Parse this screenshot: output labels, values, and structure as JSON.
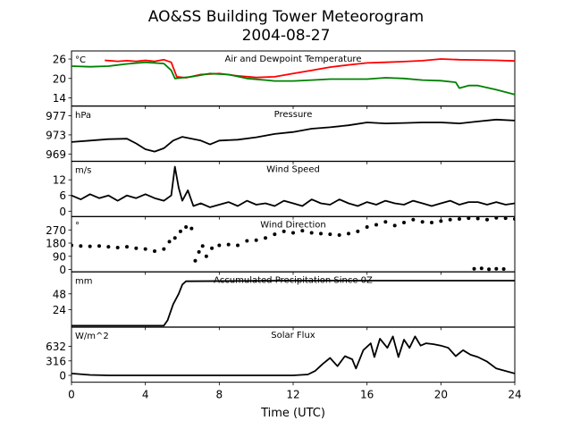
{
  "title": "AO&SS Building Tower Meteorogram",
  "subtitle": "2004-08-27",
  "xlabel": "Time (UTC)",
  "xticks": [
    "0",
    "4",
    "8",
    "12",
    "16",
    "20",
    "24"
  ],
  "chart_data": [
    {
      "type": "line",
      "title": "Air and Dewpoint Temperature",
      "unit": "°C",
      "ylim": [
        11.5,
        28.5
      ],
      "yticks": [
        14,
        20,
        26
      ],
      "x_unit": "hours UTC",
      "series": [
        {
          "color": "#ff0000",
          "points": [
            [
              1.8,
              25.6
            ],
            [
              2.5,
              25.3
            ],
            [
              3,
              25.5
            ],
            [
              3.5,
              25.3
            ],
            [
              4,
              25.6
            ],
            [
              4.5,
              25.3
            ],
            [
              5,
              25.8
            ],
            [
              5.4,
              25.0
            ],
            [
              5.7,
              20.5
            ],
            [
              6.2,
              20.2
            ],
            [
              7,
              21.2
            ],
            [
              8,
              21.5
            ],
            [
              9,
              20.8
            ],
            [
              10,
              20.3
            ],
            [
              11,
              20.5
            ],
            [
              12,
              21.5
            ],
            [
              13,
              22.5
            ],
            [
              14,
              23.5
            ],
            [
              15,
              24.2
            ],
            [
              16,
              24.8
            ],
            [
              17,
              25.0
            ],
            [
              18,
              25.2
            ],
            [
              19,
              25.5
            ],
            [
              20,
              26.0
            ],
            [
              21,
              25.8
            ],
            [
              22,
              25.7
            ],
            [
              23,
              25.6
            ],
            [
              24,
              25.4
            ]
          ]
        },
        {
          "color": "#008000",
          "points": [
            [
              0,
              23.8
            ],
            [
              1,
              23.6
            ],
            [
              2,
              23.8
            ],
            [
              3,
              24.5
            ],
            [
              4,
              25.0
            ],
            [
              5,
              24.6
            ],
            [
              5.4,
              22.5
            ],
            [
              5.6,
              20.0
            ],
            [
              6.5,
              20.5
            ],
            [
              7.5,
              21.5
            ],
            [
              8.5,
              21.2
            ],
            [
              9.5,
              20.0
            ],
            [
              10.5,
              19.5
            ],
            [
              11,
              19.2
            ],
            [
              12,
              19.2
            ],
            [
              13,
              19.5
            ],
            [
              14,
              19.8
            ],
            [
              15,
              19.8
            ],
            [
              16,
              19.8
            ],
            [
              17,
              20.2
            ],
            [
              18,
              20.0
            ],
            [
              19,
              19.5
            ],
            [
              20,
              19.3
            ],
            [
              20.8,
              18.8
            ],
            [
              21,
              17.0
            ],
            [
              21.5,
              17.8
            ],
            [
              22,
              17.8
            ],
            [
              23,
              16.5
            ],
            [
              24,
              15.0
            ]
          ]
        }
      ]
    },
    {
      "type": "line",
      "title": "Pressure",
      "unit": "hPa",
      "ylim": [
        967.5,
        979
      ],
      "yticks": [
        969,
        973,
        977
      ],
      "x_unit": "hours UTC",
      "series": [
        {
          "color": "#000000",
          "points": [
            [
              0,
              971.5
            ],
            [
              1,
              971.8
            ],
            [
              2,
              972.1
            ],
            [
              3,
              972.2
            ],
            [
              3.5,
              971.2
            ],
            [
              4,
              970.0
            ],
            [
              4.5,
              969.5
            ],
            [
              5,
              970.2
            ],
            [
              5.5,
              971.8
            ],
            [
              6,
              972.6
            ],
            [
              7,
              971.8
            ],
            [
              7.5,
              971.0
            ],
            [
              8,
              971.8
            ],
            [
              9,
              972.0
            ],
            [
              10,
              972.5
            ],
            [
              11,
              973.2
            ],
            [
              12,
              973.6
            ],
            [
              13,
              974.3
            ],
            [
              14,
              974.6
            ],
            [
              15,
              975.0
            ],
            [
              16,
              975.6
            ],
            [
              17,
              975.4
            ],
            [
              18,
              975.5
            ],
            [
              19,
              975.6
            ],
            [
              20,
              975.6
            ],
            [
              21,
              975.4
            ],
            [
              22,
              975.8
            ],
            [
              23,
              976.2
            ],
            [
              24,
              976.0
            ]
          ]
        }
      ]
    },
    {
      "type": "line",
      "title": "Wind Speed",
      "unit": "m/s",
      "ylim": [
        -2,
        19
      ],
      "yticks": [
        0,
        6,
        12
      ],
      "x_unit": "hours UTC",
      "series": [
        {
          "color": "#000000",
          "points": [
            [
              0,
              6
            ],
            [
              0.5,
              4.5
            ],
            [
              1,
              6.5
            ],
            [
              1.5,
              5
            ],
            [
              2,
              6
            ],
            [
              2.5,
              4
            ],
            [
              3,
              6
            ],
            [
              3.5,
              5
            ],
            [
              4,
              6.5
            ],
            [
              4.5,
              5
            ],
            [
              5,
              4
            ],
            [
              5.4,
              6
            ],
            [
              5.6,
              17
            ],
            [
              5.8,
              9
            ],
            [
              6,
              4
            ],
            [
              6.3,
              8
            ],
            [
              6.6,
              2
            ],
            [
              7,
              3
            ],
            [
              7.5,
              1.5
            ],
            [
              8,
              2.5
            ],
            [
              8.5,
              3.5
            ],
            [
              9,
              2
            ],
            [
              9.5,
              4
            ],
            [
              10,
              2.5
            ],
            [
              10.5,
              3
            ],
            [
              11,
              2
            ],
            [
              11.5,
              4
            ],
            [
              12,
              3
            ],
            [
              12.5,
              2
            ],
            [
              13,
              4.5
            ],
            [
              13.5,
              3
            ],
            [
              14,
              2.5
            ],
            [
              14.5,
              4.5
            ],
            [
              15,
              3
            ],
            [
              15.5,
              2
            ],
            [
              16,
              3.5
            ],
            [
              16.5,
              2.5
            ],
            [
              17,
              4
            ],
            [
              17.5,
              3
            ],
            [
              18,
              2.5
            ],
            [
              18.5,
              4
            ],
            [
              19,
              3
            ],
            [
              19.5,
              2
            ],
            [
              20,
              3
            ],
            [
              20.5,
              4
            ],
            [
              21,
              2.5
            ],
            [
              21.5,
              3.5
            ],
            [
              22,
              3.5
            ],
            [
              22.5,
              2.5
            ],
            [
              23,
              3.5
            ],
            [
              23.5,
              2.5
            ],
            [
              24,
              3
            ]
          ]
        }
      ]
    },
    {
      "type": "scatter",
      "title": "Wind Direction",
      "unit": "°",
      "ylim": [
        -15,
        360
      ],
      "yticks": [
        0,
        90,
        180,
        270
      ],
      "x_unit": "hours UTC",
      "series": [
        {
          "color": "#000000",
          "points": [
            [
              0,
              165
            ],
            [
              0.5,
              160
            ],
            [
              1,
              158
            ],
            [
              1.5,
              160
            ],
            [
              2,
              155
            ],
            [
              2.5,
              150
            ],
            [
              3,
              155
            ],
            [
              3.5,
              145
            ],
            [
              4,
              140
            ],
            [
              4.5,
              125
            ],
            [
              5,
              140
            ],
            [
              5.3,
              190
            ],
            [
              5.6,
              215
            ],
            [
              5.9,
              260
            ],
            [
              6.2,
              290
            ],
            [
              6.5,
              280
            ],
            [
              6.7,
              60
            ],
            [
              6.9,
              120
            ],
            [
              7.1,
              160
            ],
            [
              7.3,
              90
            ],
            [
              7.6,
              145
            ],
            [
              8,
              165
            ],
            [
              8.5,
              170
            ],
            [
              9,
              165
            ],
            [
              9.5,
              195
            ],
            [
              10,
              200
            ],
            [
              10.5,
              215
            ],
            [
              11,
              240
            ],
            [
              11.5,
              260
            ],
            [
              12,
              250
            ],
            [
              12.5,
              265
            ],
            [
              13,
              250
            ],
            [
              13.5,
              245
            ],
            [
              14,
              240
            ],
            [
              14.5,
              235
            ],
            [
              15,
              245
            ],
            [
              15.5,
              260
            ],
            [
              16,
              290
            ],
            [
              16.5,
              305
            ],
            [
              17,
              325
            ],
            [
              17.5,
              300
            ],
            [
              18,
              320
            ],
            [
              18.5,
              340
            ],
            [
              19,
              325
            ],
            [
              19.5,
              320
            ],
            [
              20,
              330
            ],
            [
              20.5,
              340
            ],
            [
              21,
              345
            ],
            [
              21.5,
              350
            ],
            [
              22,
              348
            ],
            [
              22.5,
              340
            ],
            [
              23,
              352
            ],
            [
              23.5,
              350
            ],
            [
              24,
              345
            ],
            [
              21.8,
              5
            ],
            [
              22.2,
              8
            ],
            [
              22.6,
              2
            ],
            [
              23,
              5
            ],
            [
              23.4,
              3
            ]
          ]
        }
      ]
    },
    {
      "type": "line",
      "title": "Accumulated Precipitation Since 0Z",
      "unit": "mm",
      "ylim": [
        -2,
        81
      ],
      "yticks": [
        24,
        48
      ],
      "x_unit": "hours UTC",
      "series": [
        {
          "color": "#000000",
          "points": [
            [
              0,
              0
            ],
            [
              5,
              0
            ],
            [
              5.2,
              8
            ],
            [
              5.5,
              32
            ],
            [
              5.8,
              48
            ],
            [
              6,
              62
            ],
            [
              6.2,
              67
            ],
            [
              12,
              68
            ],
            [
              16,
              68
            ],
            [
              20,
              68
            ],
            [
              24,
              68
            ]
          ]
        }
      ]
    },
    {
      "type": "line",
      "title": "Solar Flux",
      "unit": "W/m^2",
      "ylim": [
        -150,
        1050
      ],
      "yticks": [
        0,
        316,
        632
      ],
      "x_unit": "hours UTC",
      "series": [
        {
          "color": "#000000",
          "points": [
            [
              0,
              40
            ],
            [
              1,
              10
            ],
            [
              2,
              0
            ],
            [
              12,
              0
            ],
            [
              12.8,
              20
            ],
            [
              13.2,
              100
            ],
            [
              13.6,
              250
            ],
            [
              14,
              380
            ],
            [
              14.4,
              200
            ],
            [
              14.8,
              420
            ],
            [
              15.2,
              350
            ],
            [
              15.4,
              150
            ],
            [
              15.8,
              550
            ],
            [
              16.2,
              700
            ],
            [
              16.4,
              400
            ],
            [
              16.7,
              800
            ],
            [
              17.1,
              600
            ],
            [
              17.4,
              850
            ],
            [
              17.7,
              400
            ],
            [
              18,
              780
            ],
            [
              18.3,
              600
            ],
            [
              18.6,
              850
            ],
            [
              18.9,
              650
            ],
            [
              19.2,
              700
            ],
            [
              19.6,
              680
            ],
            [
              20,
              650
            ],
            [
              20.4,
              600
            ],
            [
              20.8,
              420
            ],
            [
              21.2,
              550
            ],
            [
              21.6,
              450
            ],
            [
              22,
              400
            ],
            [
              22.5,
              300
            ],
            [
              23,
              150
            ],
            [
              24,
              40
            ]
          ]
        }
      ]
    }
  ]
}
